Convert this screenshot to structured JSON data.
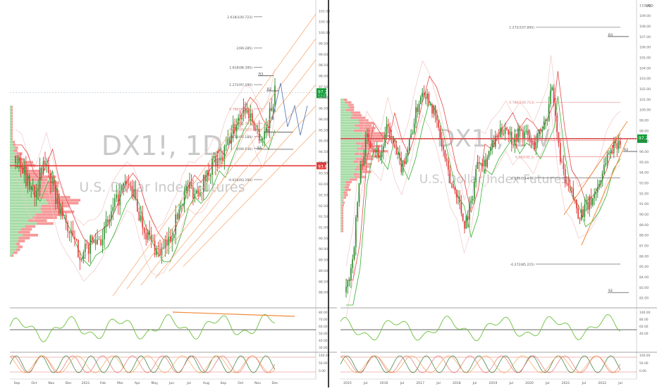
{
  "colors": {
    "up": "#2a8f2a",
    "down": "#e53935",
    "fib": "#f5a56a",
    "pivot": "#333333",
    "channel_fill": "#fde6d4",
    "green_line": "#33b233",
    "red_line": "#e64a4a",
    "price_tag": "#0f9d35",
    "poc_tag": "#e53935",
    "projection": "#5b7fb8",
    "watermark": "#c9c9c9"
  },
  "left_panel": {
    "watermark_symbol": "DX1!, 1D",
    "watermark_name": "U.S. Dollar Index Futures",
    "fib_labels": [
      "2.618(100.723)",
      "2(99.285)",
      "1.618(98.395)",
      "1.272(97.590)",
      "0.786(96.462)",
      "0.5(95.797)",
      "0.382(95.522)",
      "0.236(95.184)",
      "0(94.636)",
      "-0.618(93.198)"
    ],
    "pivot_labels": [
      "R3",
      "R2",
      "S1",
      "S3"
    ],
    "price_tag": "97.225",
    "price_tag_sub": "12:52:17",
    "poc_tag": "93.840",
    "y_ticks": [
      "101.00",
      "100.50",
      "100.00",
      "99.50",
      "99.00",
      "98.50",
      "98.00",
      "97.50",
      "97.00",
      "96.50",
      "96.00",
      "95.50",
      "95.00",
      "94.50",
      "94.00",
      "93.50",
      "93.00",
      "92.50",
      "92.00",
      "91.50",
      "91.00",
      "90.50",
      "90.00",
      "89.50",
      "89.00",
      "88.50",
      "88.00"
    ],
    "x_ticks": [
      "Sep",
      "Oct",
      "Nov",
      "Dec",
      "2021",
      "Feb",
      "Mar",
      "Apr",
      "May",
      "Jun",
      "Jul",
      "Aug",
      "Sep",
      "Oct",
      "Nov",
      "Dec"
    ],
    "rsi_ticks": [
      "80.00",
      "70.00",
      "60.00",
      "50.00",
      "40.00",
      "30.00"
    ],
    "osc_ticks": [
      "100.00",
      "50.00",
      "0.00"
    ],
    "chart_data": {
      "type": "candlestick",
      "title": "DX1!, 1D",
      "subtitle": "U.S. Dollar Index Futures",
      "ylim": [
        87.5,
        101.5
      ],
      "close_series_points": [
        [
          0,
          94.3
        ],
        [
          4,
          93.9
        ],
        [
          8,
          93.0
        ],
        [
          12,
          92.7
        ],
        [
          16,
          93.4
        ],
        [
          20,
          94.1
        ],
        [
          24,
          92.8
        ],
        [
          28,
          91.9
        ],
        [
          32,
          91.3
        ],
        [
          36,
          90.6
        ],
        [
          40,
          90.0
        ],
        [
          44,
          89.7
        ],
        [
          48,
          90.2
        ],
        [
          52,
          90.4
        ],
        [
          56,
          90.6
        ],
        [
          60,
          91.2
        ],
        [
          64,
          91.9
        ],
        [
          68,
          92.6
        ],
        [
          72,
          93.0
        ],
        [
          76,
          92.6
        ],
        [
          80,
          91.6
        ],
        [
          84,
          90.9
        ],
        [
          88,
          90.3
        ],
        [
          92,
          89.9
        ],
        [
          96,
          89.9
        ],
        [
          100,
          90.5
        ],
        [
          104,
          91.3
        ],
        [
          108,
          92.4
        ],
        [
          112,
          92.9
        ],
        [
          116,
          92.6
        ],
        [
          120,
          92.9
        ],
        [
          124,
          93.4
        ],
        [
          128,
          94.1
        ],
        [
          132,
          93.8
        ],
        [
          136,
          94.6
        ],
        [
          140,
          95.3
        ],
        [
          144,
          96.0
        ],
        [
          148,
          96.5
        ],
        [
          152,
          96.2
        ],
        [
          156,
          95.5
        ],
        [
          160,
          95.1
        ],
        [
          164,
          96.0
        ],
        [
          168,
          97.225
        ]
      ],
      "last_price": 97.225,
      "poc": 93.84
    }
  },
  "right_panel": {
    "watermark_symbol": "DX1!, 1W",
    "watermark_name": "U.S. Dollar Index Futures",
    "fib_labels": [
      "1.272(107.895)",
      "0.786(100.713)",
      "0.5(97.059)",
      "0.382(95.5)",
      "0.236(93.474)",
      "-0.272(85.215)"
    ],
    "pivot_labels": [
      "R3",
      "R2",
      "S3"
    ],
    "price_tag": "97.225",
    "poc_tag": "97.225",
    "currency": "USD",
    "y_ticks": [
      "110.00",
      "109.00",
      "108.00",
      "107.00",
      "106.00",
      "105.00",
      "104.00",
      "103.00",
      "102.00",
      "101.00",
      "100.00",
      "99.00",
      "98.00",
      "97.00",
      "96.00",
      "95.00",
      "94.00",
      "93.00",
      "92.00",
      "91.00",
      "90.00",
      "89.00",
      "88.00",
      "87.00",
      "86.00",
      "85.00",
      "84.00",
      "83.00",
      "82.00"
    ],
    "x_ticks": [
      "2015",
      "Jul",
      "2016",
      "Jul",
      "2017",
      "Jul",
      "2018",
      "Jul",
      "2019",
      "Jul",
      "2020",
      "Jul",
      "2021",
      "Jul",
      "2022",
      "Jul"
    ],
    "rsi_ticks": [
      "100.00",
      "80.00",
      "60.00",
      "40.00"
    ],
    "osc_ticks": [
      "100.00",
      "50.00",
      "0.00"
    ],
    "chart_data": {
      "type": "candlestick",
      "title": "DX1!, 1W",
      "subtitle": "U.S. Dollar Index Futures",
      "ylim": [
        81.5,
        110.5
      ],
      "close_series_points": [
        [
          0,
          82.5
        ],
        [
          4,
          86.0
        ],
        [
          8,
          94.0
        ],
        [
          12,
          97.5
        ],
        [
          16,
          96.5
        ],
        [
          20,
          95.5
        ],
        [
          24,
          98.5
        ],
        [
          28,
          96.0
        ],
        [
          32,
          94.5
        ],
        [
          36,
          96.5
        ],
        [
          40,
          99.5
        ],
        [
          44,
          102.0
        ],
        [
          48,
          101.0
        ],
        [
          52,
          99.0
        ],
        [
          56,
          96.0
        ],
        [
          60,
          93.0
        ],
        [
          64,
          92.0
        ],
        [
          68,
          89.0
        ],
        [
          72,
          91.0
        ],
        [
          76,
          95.5
        ],
        [
          80,
          95.0
        ],
        [
          84,
          96.5
        ],
        [
          88,
          97.5
        ],
        [
          92,
          98.5
        ],
        [
          96,
          97.0
        ],
        [
          100,
          98.0
        ],
        [
          104,
          97.5
        ],
        [
          108,
          96.5
        ],
        [
          112,
          98.0
        ],
        [
          116,
          99.5
        ],
        [
          118,
          102.5
        ],
        [
          122,
          97.0
        ],
        [
          126,
          93.0
        ],
        [
          130,
          92.0
        ],
        [
          134,
          90.0
        ],
        [
          138,
          90.5
        ],
        [
          142,
          91.5
        ],
        [
          146,
          93.0
        ],
        [
          150,
          95.5
        ],
        [
          154,
          96.5
        ],
        [
          158,
          97.225
        ]
      ],
      "last_price": 97.225,
      "poc": 97.225
    }
  }
}
